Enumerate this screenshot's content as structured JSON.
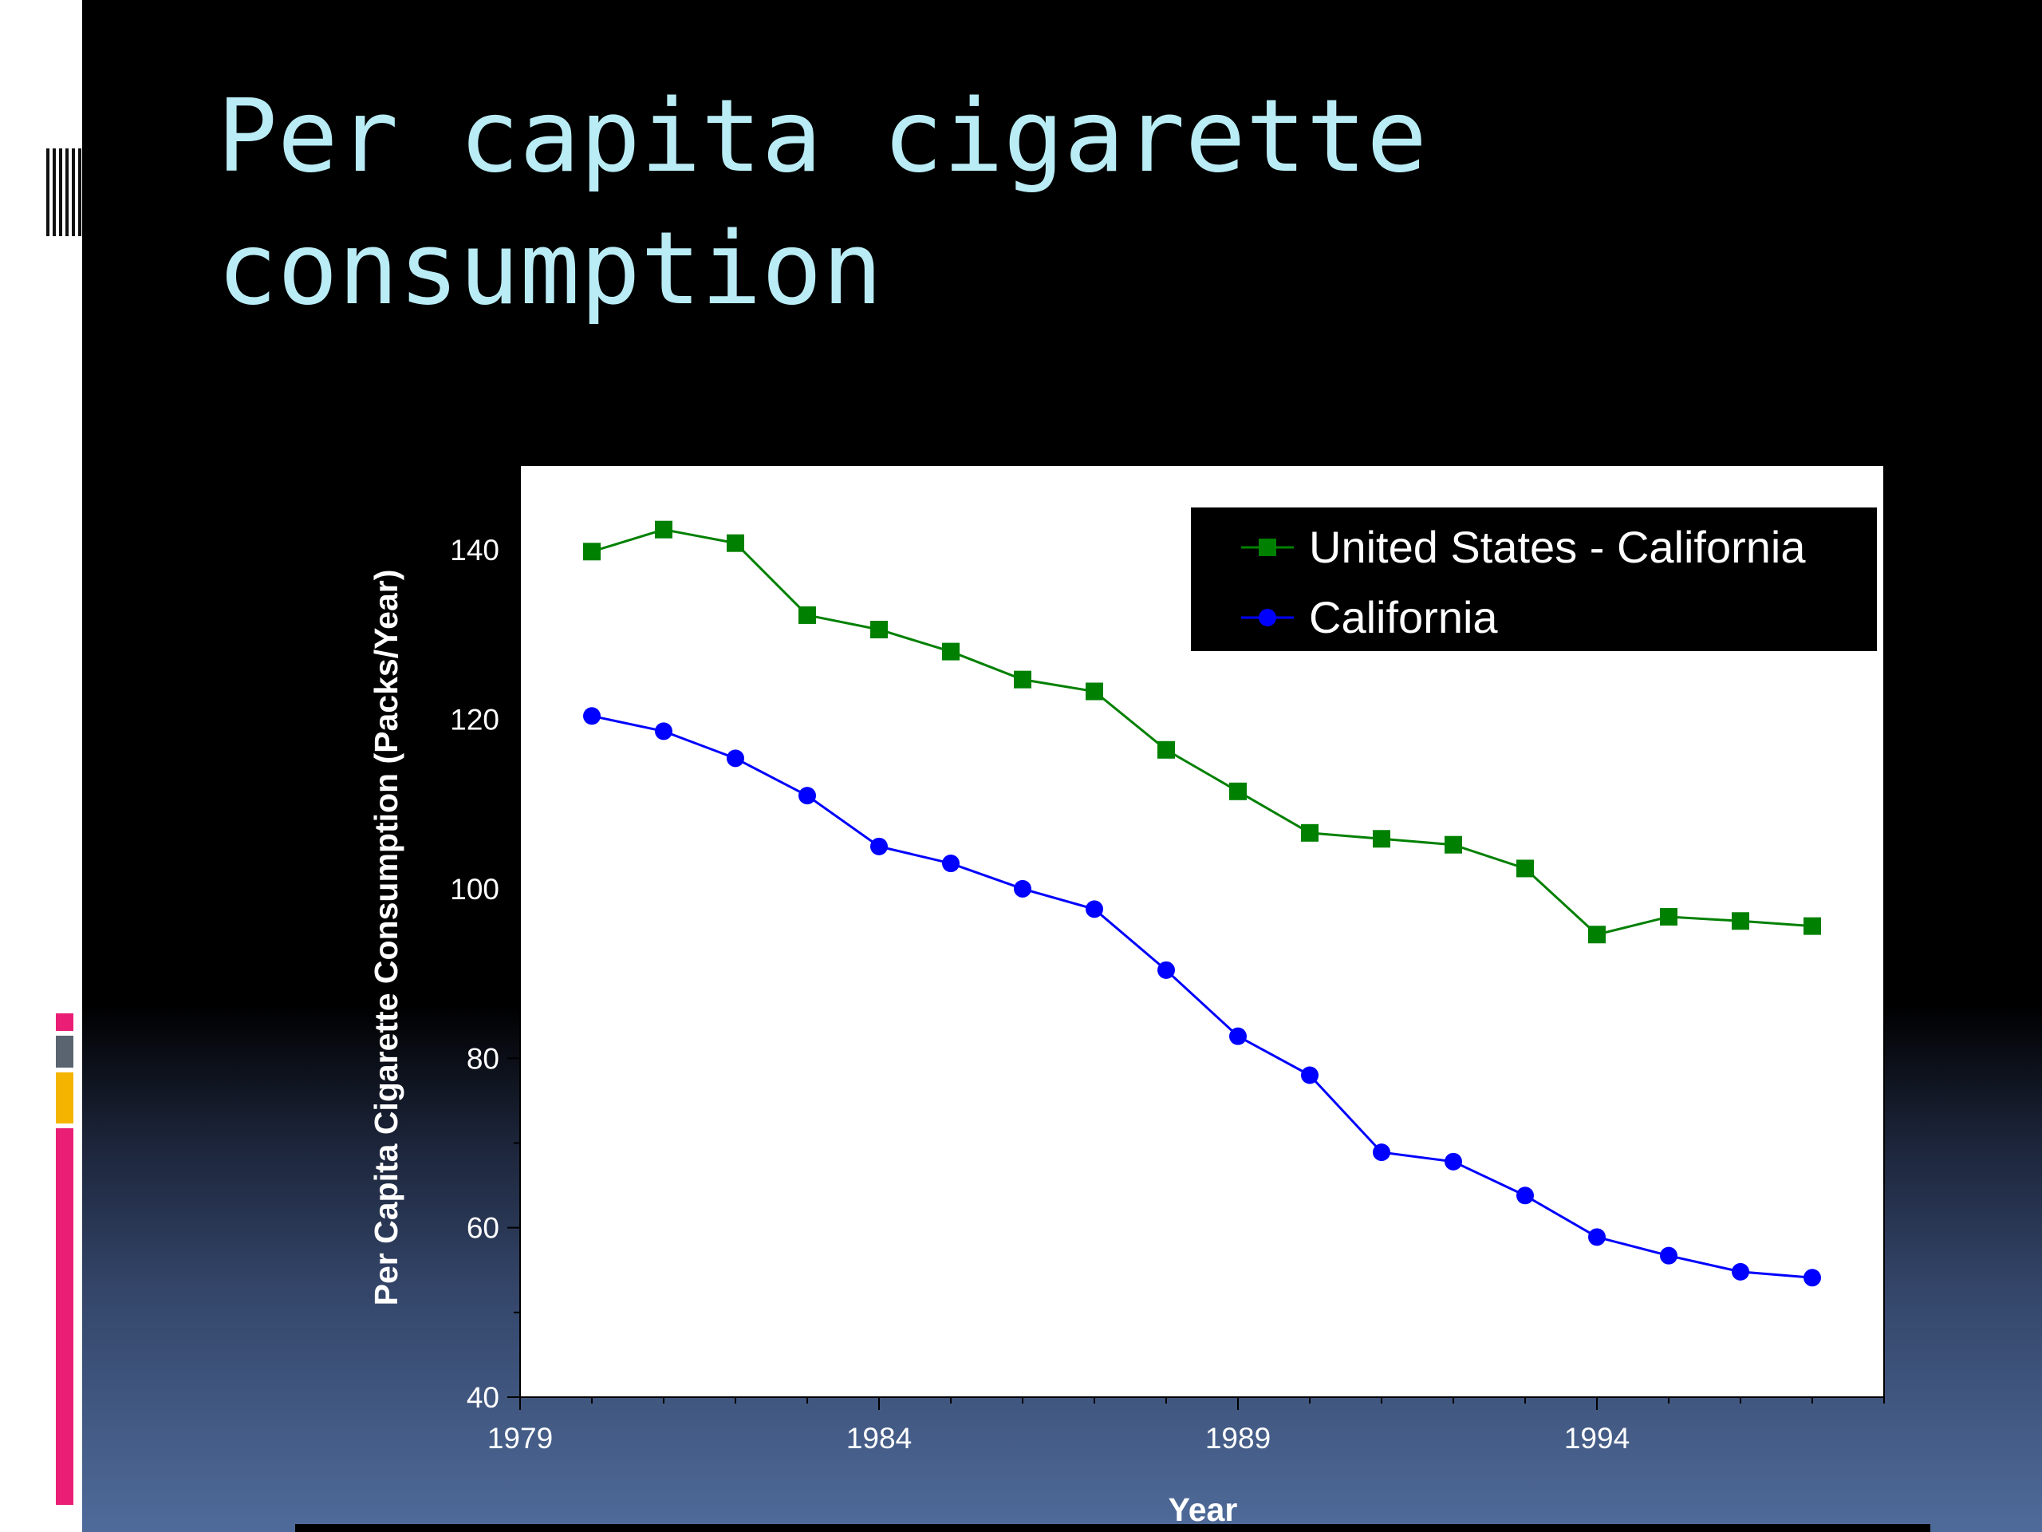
{
  "slide": {
    "title": "Per capita cigarette consumption"
  },
  "colors": {
    "title": "#b9ecf5",
    "us_minus_ca": "#008000",
    "california": "#0000ff",
    "accent_pink": "#e91e74",
    "accent_gray": "#5a6470",
    "accent_orange": "#f5b400"
  },
  "chart_data": {
    "type": "line",
    "xlabel": "Year",
    "ylabel": "Per Capita Cigarette Consumption (Packs/Year)",
    "xlim": [
      1979,
      1998
    ],
    "ylim": [
      40,
      150
    ],
    "xticks": [
      1979,
      1984,
      1989,
      1994
    ],
    "yticks": [
      40,
      60,
      80,
      100,
      120,
      140
    ],
    "x": [
      1980,
      1981,
      1982,
      1983,
      1984,
      1985,
      1986,
      1987,
      1988,
      1989,
      1990,
      1991,
      1992,
      1993,
      1994,
      1995,
      1996,
      1997
    ],
    "legend_position": "top-right",
    "series": [
      {
        "name": "United States - California",
        "marker": "square",
        "color": "#008000",
        "values": [
          139.8,
          142.4,
          140.8,
          132.3,
          130.6,
          128.0,
          124.7,
          123.3,
          116.4,
          111.5,
          106.6,
          105.9,
          105.2,
          102.4,
          94.6,
          96.7,
          96.2,
          95.6
        ]
      },
      {
        "name": "California",
        "marker": "circle",
        "color": "#0000ff",
        "values": [
          120.4,
          118.6,
          115.4,
          111.0,
          105.0,
          103.0,
          100.0,
          97.6,
          90.4,
          82.6,
          78.0,
          68.9,
          67.8,
          63.8,
          58.9,
          56.7,
          54.8,
          54.1
        ]
      }
    ]
  }
}
